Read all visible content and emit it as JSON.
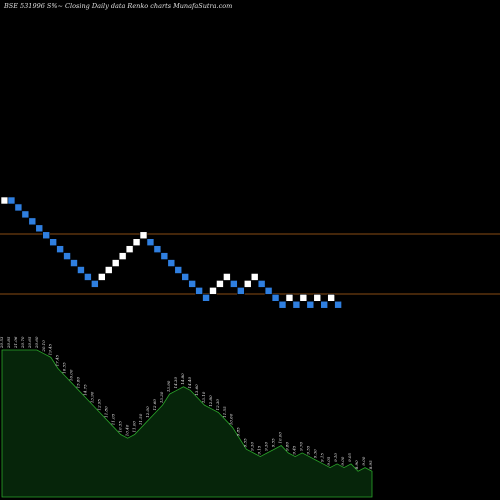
{
  "header": {
    "title": "BSE 531996  S%~ Closing Daily data  Renko  charts MunafaSutra.com"
  },
  "colors": {
    "background": "#000000",
    "brick_up": "#ffffff",
    "brick_down": "#2f7fe0",
    "reference_line": "#b5651d",
    "area_fill": "#06250a",
    "area_stroke": "#2aa52a"
  },
  "chart_data": {
    "type": "renko",
    "title": "BSE 531996  S%~ Closing Daily data  Renko  charts MunafaSutra.com",
    "brick_size": 1,
    "grid": false,
    "bricks": [
      {
        "level": 0,
        "dir": "up"
      },
      {
        "level": 0,
        "dir": "down"
      },
      {
        "level": -1,
        "dir": "down"
      },
      {
        "level": -2,
        "dir": "down"
      },
      {
        "level": -3,
        "dir": "down"
      },
      {
        "level": -4,
        "dir": "down"
      },
      {
        "level": -5,
        "dir": "down"
      },
      {
        "level": -6,
        "dir": "down"
      },
      {
        "level": -7,
        "dir": "down"
      },
      {
        "level": -8,
        "dir": "down"
      },
      {
        "level": -9,
        "dir": "down"
      },
      {
        "level": -10,
        "dir": "down"
      },
      {
        "level": -11,
        "dir": "down"
      },
      {
        "level": -12,
        "dir": "down"
      },
      {
        "level": -11,
        "dir": "up"
      },
      {
        "level": -10,
        "dir": "up"
      },
      {
        "level": -9,
        "dir": "up"
      },
      {
        "level": -8,
        "dir": "up"
      },
      {
        "level": -7,
        "dir": "up"
      },
      {
        "level": -6,
        "dir": "up"
      },
      {
        "level": -5,
        "dir": "up"
      },
      {
        "level": -6,
        "dir": "down"
      },
      {
        "level": -7,
        "dir": "down"
      },
      {
        "level": -8,
        "dir": "down"
      },
      {
        "level": -9,
        "dir": "down"
      },
      {
        "level": -10,
        "dir": "down"
      },
      {
        "level": -11,
        "dir": "down"
      },
      {
        "level": -12,
        "dir": "down"
      },
      {
        "level": -13,
        "dir": "down"
      },
      {
        "level": -14,
        "dir": "down"
      },
      {
        "level": -13,
        "dir": "up"
      },
      {
        "level": -12,
        "dir": "up"
      },
      {
        "level": -11,
        "dir": "up"
      },
      {
        "level": -12,
        "dir": "down"
      },
      {
        "level": -13,
        "dir": "down"
      },
      {
        "level": -12,
        "dir": "up"
      },
      {
        "level": -11,
        "dir": "up"
      },
      {
        "level": -12,
        "dir": "down"
      },
      {
        "level": -13,
        "dir": "down"
      },
      {
        "level": -14,
        "dir": "down"
      },
      {
        "level": -15,
        "dir": "down"
      },
      {
        "level": -14,
        "dir": "up"
      },
      {
        "level": -15,
        "dir": "down"
      },
      {
        "level": -14,
        "dir": "up"
      },
      {
        "level": -15,
        "dir": "down"
      },
      {
        "level": -14,
        "dir": "up"
      },
      {
        "level": -15,
        "dir": "down"
      },
      {
        "level": -14,
        "dir": "up"
      },
      {
        "level": -15,
        "dir": "down"
      }
    ],
    "price_labels": [
      "20.53",
      "20.85",
      "21.06",
      "20.70",
      "20.65",
      "20.60",
      "20.10",
      "19.45",
      "17.45",
      "16.55",
      "16.00",
      "15.80",
      "14.75",
      "13.90",
      "12.95",
      "11.80",
      "11.05",
      "10.55",
      "10.40",
      "11.00",
      "11.50",
      "12.00",
      "12.60",
      "13.30",
      "13.90",
      "14.30",
      "14.80",
      "14.40",
      "13.60",
      "13.10",
      "12.80",
      "12.30",
      "11.55",
      "10.60",
      "9.85",
      "9.55",
      "9.30",
      "9.15",
      "9.30",
      "9.55",
      "10.00",
      "9.80",
      "9.45",
      "9.70",
      "9.55",
      "9.30",
      "9.15",
      "9.05",
      "9.10",
      "9.00",
      "9.05",
      "8.90",
      "9.00",
      "8.95"
    ],
    "area_values": [
      40,
      40,
      40,
      40,
      40,
      40,
      39,
      38,
      35,
      33,
      31,
      29,
      27,
      25,
      23,
      21,
      19,
      17,
      16,
      17,
      19,
      21,
      23,
      25,
      28,
      29,
      30,
      29,
      27,
      25,
      24,
      23,
      21,
      19,
      16,
      13,
      12,
      11,
      12,
      13,
      14,
      12,
      11,
      12,
      11,
      10,
      9,
      8,
      9,
      8,
      9,
      7,
      8,
      7
    ]
  }
}
